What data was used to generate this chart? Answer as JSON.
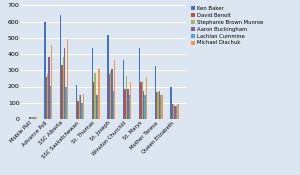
{
  "categories": [
    "Mobile Poll",
    "Advance Poll",
    "SSC Alberta",
    "SSC Saskatchewan",
    "St. Thomas",
    "St. Joseph",
    "Winston Churchill",
    "St. Marys",
    "Mother Teresa",
    "Queen Elizabeth"
  ],
  "series": {
    "Ken Baker": [
      15,
      600,
      640,
      210,
      440,
      515,
      365,
      435,
      325,
      200
    ],
    "David Benoit": [
      10,
      260,
      335,
      110,
      230,
      275,
      185,
      225,
      165,
      90
    ],
    "Stephanie Brown Munroe": [
      12,
      275,
      380,
      145,
      285,
      295,
      265,
      235,
      165,
      90
    ],
    "Aaron Buckingham": [
      10,
      380,
      435,
      145,
      150,
      305,
      185,
      175,
      170,
      80
    ],
    "Lachlan Cummine": [
      10,
      205,
      200,
      100,
      150,
      170,
      150,
      145,
      150,
      80
    ],
    "Michael Diachuk": [
      10,
      455,
      490,
      155,
      305,
      365,
      230,
      260,
      150,
      95
    ]
  },
  "colors": [
    "#4472c4",
    "#c0504d",
    "#9bbb59",
    "#8064a2",
    "#4bacc6",
    "#f79646"
  ],
  "ylim": [
    0,
    700
  ],
  "yticks": [
    0,
    100,
    200,
    300,
    400,
    500,
    600,
    700
  ],
  "background_color": "#dce6f1",
  "plot_bg_color": "#dce6f1",
  "grid_color": "#ffffff"
}
